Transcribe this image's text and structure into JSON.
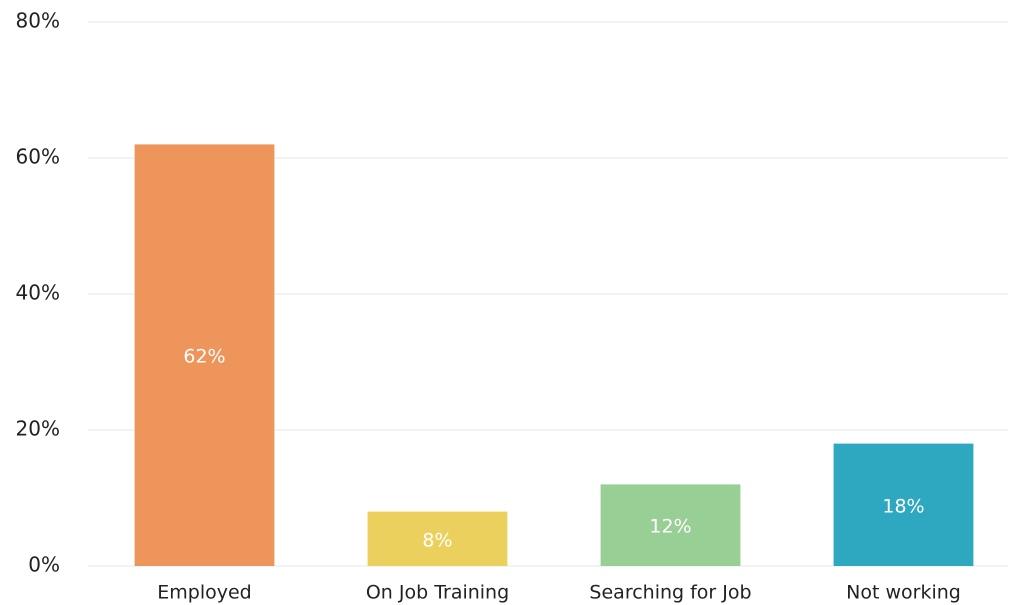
{
  "chart_data": {
    "type": "bar",
    "categories": [
      "Employed",
      "On Job Training",
      "Searching for Job",
      "Not working"
    ],
    "values": [
      62,
      8,
      12,
      18
    ],
    "value_labels": [
      "62%",
      "8%",
      "12%",
      "18%"
    ],
    "colors": [
      "#ed955a",
      "#ebd05e",
      "#97cf95",
      "#2ea8c0"
    ],
    "ylim": [
      0,
      80
    ],
    "yticks": [
      {
        "value": 0,
        "label": "0%"
      },
      {
        "value": 20,
        "label": "20%"
      },
      {
        "value": 40,
        "label": "40%"
      },
      {
        "value": 60,
        "label": "60%"
      },
      {
        "value": 80,
        "label": "80%"
      }
    ],
    "grid": true
  }
}
